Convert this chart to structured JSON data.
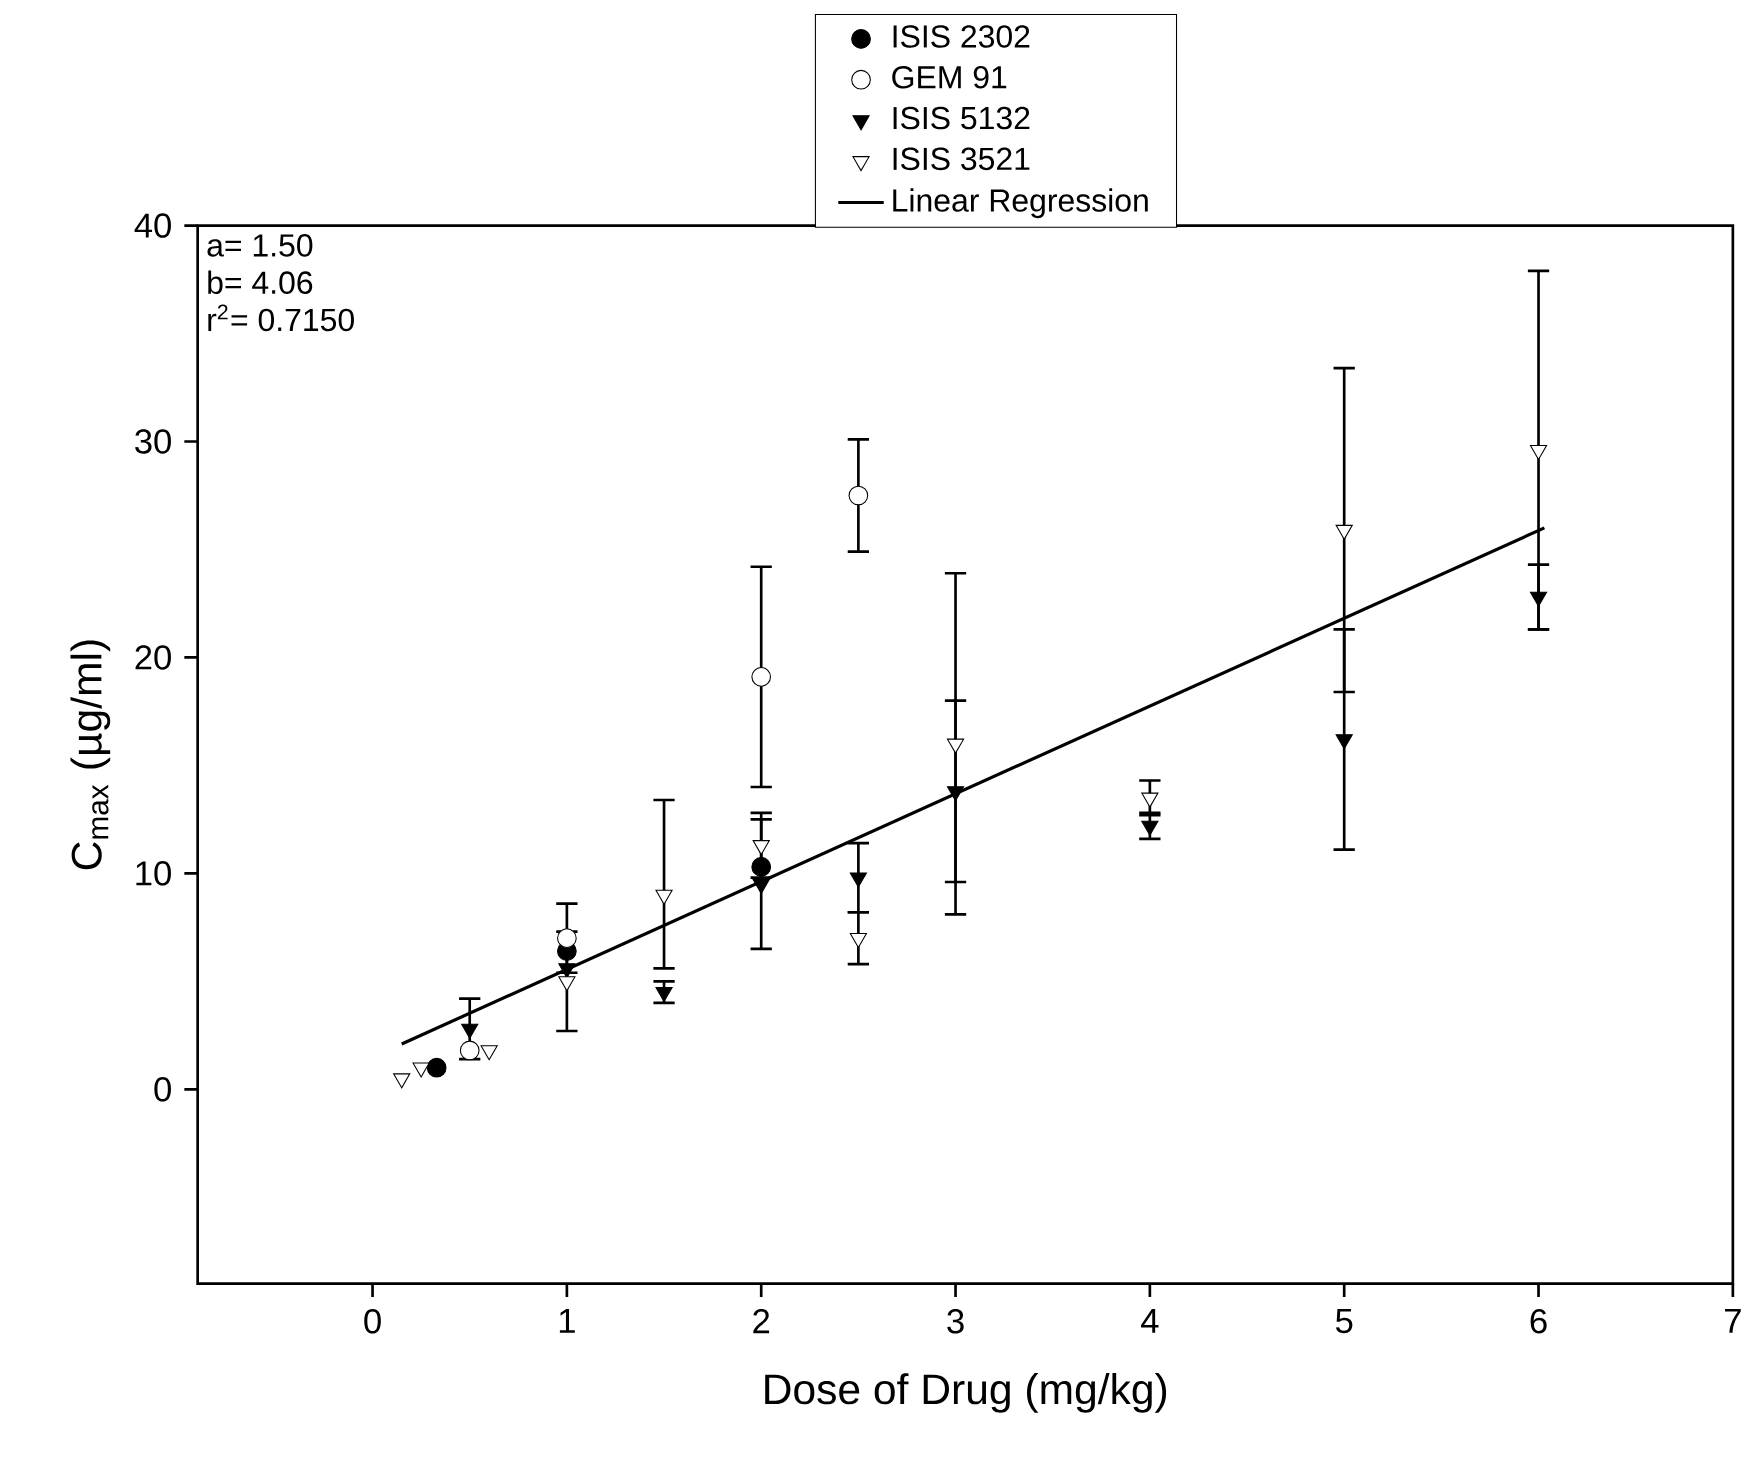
{
  "chart_data": {
    "type": "scatter",
    "xlabel": "Dose of Drug (mg/kg)",
    "ylabel": "C$_{max}$ (µg/ml)",
    "xlim": [
      -0.9,
      7
    ],
    "ylim": [
      -9,
      40
    ],
    "xticks": [
      0,
      1,
      2,
      3,
      4,
      5,
      6,
      7
    ],
    "yticks": [
      0,
      10,
      20,
      30,
      40
    ],
    "grid": false,
    "legend": "top",
    "annotations": [
      "a= 1.50",
      "b= 4.06",
      "r$^{2}$= 0.7150"
    ],
    "series": [
      {
        "name": "ISIS 2302",
        "color": "#000000",
        "marker": "circle",
        "x": [
          0.33,
          1.0,
          2.0
        ],
        "values": [
          1.0,
          6.4,
          10.3
        ],
        "errors": [
          null,
          null,
          null
        ]
      },
      {
        "name": "GEM 91",
        "color": "#ffffff",
        "marker": "circle",
        "x": [
          0.5,
          1.0,
          2.0,
          2.5
        ],
        "values": [
          1.8,
          7.0,
          19.1,
          27.5
        ],
        "errors": [
          null,
          1.6,
          5.1,
          2.6
        ]
      },
      {
        "name": "ISIS 5132",
        "color": "#000000",
        "marker": "triangle",
        "x": [
          0.5,
          1.0,
          1.5,
          2.0,
          2.5,
          3.0,
          4.0,
          5.0,
          6.0
        ],
        "values": [
          2.8,
          5.6,
          4.5,
          9.5,
          9.8,
          13.8,
          12.2,
          16.2,
          22.8
        ],
        "errors": [
          1.4,
          null,
          0.5,
          3.0,
          1.6,
          4.2,
          0.6,
          5.1,
          1.5
        ]
      },
      {
        "name": "ISIS 3521",
        "color": "#ffffff",
        "marker": "triangle",
        "x": [
          0.15,
          0.25,
          0.6,
          1.0,
          1.5,
          2.0,
          2.5,
          3.0,
          4.0,
          5.0,
          6.0
        ],
        "values": [
          0.5,
          1.0,
          1.8,
          5.0,
          9.0,
          11.3,
          7.0,
          16.0,
          13.5,
          25.9,
          29.6
        ],
        "errors": [
          null,
          null,
          null,
          2.3,
          [
            5.6,
            13.4
          ],
          1.5,
          1.2,
          7.9,
          0.8,
          7.5,
          8.3
        ]
      },
      {
        "name": "Linear Regression",
        "type": "line",
        "color": "#000000",
        "marker": "none",
        "line_style": "solid",
        "x": [
          0.15,
          6.03
        ],
        "values": [
          2.1,
          26.0
        ]
      }
    ]
  }
}
